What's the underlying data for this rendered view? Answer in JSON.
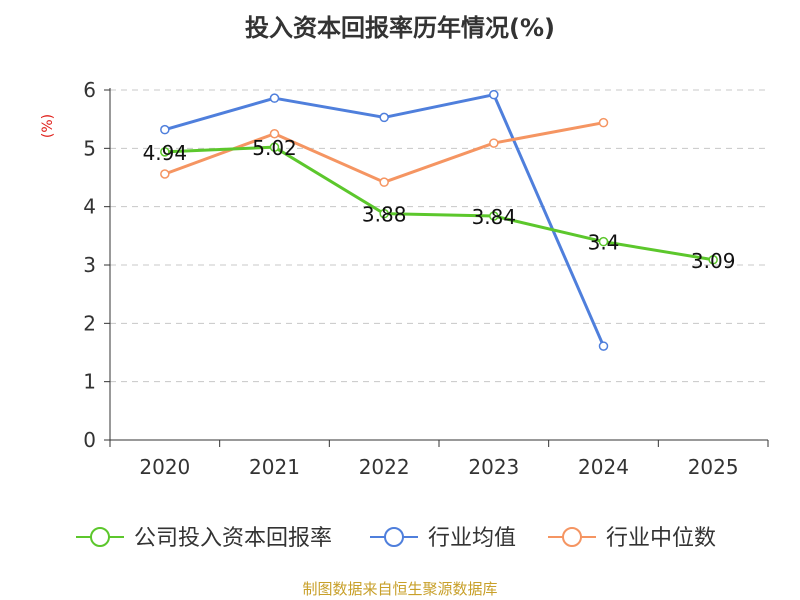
{
  "chart_data": {
    "type": "line",
    "title": "投入资本回报率历年情况(%)",
    "ylabel": "(%)",
    "xlabel": "",
    "categories": [
      "2020",
      "2021",
      "2022",
      "2023",
      "2024",
      "2025"
    ],
    "ylim": [
      0,
      6
    ],
    "yticks": [
      0,
      1,
      2,
      3,
      4,
      5,
      6
    ],
    "grid": true,
    "legend_position": "bottom",
    "series": [
      {
        "name": "公司投入资本回报率",
        "color": "#5cc72c",
        "values": [
          4.94,
          5.02,
          3.88,
          3.84,
          3.4,
          3.09
        ],
        "labels": [
          "4.94",
          "5.02",
          "3.88",
          "3.84",
          "3.4",
          "3.09"
        ]
      },
      {
        "name": "行业均值",
        "color": "#4f7fdc",
        "values": [
          5.32,
          5.86,
          5.53,
          5.92,
          1.61,
          null
        ]
      },
      {
        "name": "行业中位数",
        "color": "#f59562",
        "values": [
          4.56,
          5.25,
          4.42,
          5.09,
          5.44,
          null
        ]
      }
    ]
  },
  "source": "制图数据来自恒生聚源数据库"
}
